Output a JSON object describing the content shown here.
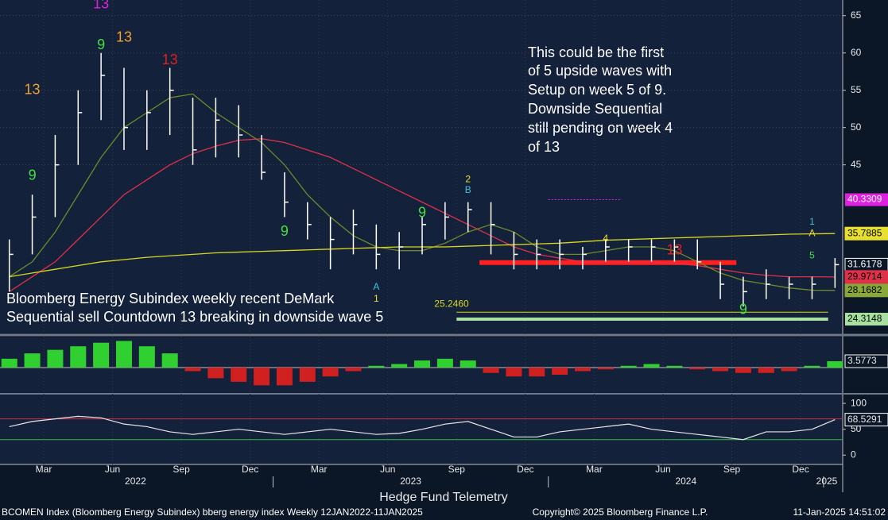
{
  "chart_data": {
    "type": "ohlc",
    "title": "Hedge Fund Telemetry",
    "footer_left": "BCOMEN Index (Bloomberg Energy Subindex) bberg energy index  Weekly 12JAN2022-11JAN2025",
    "footer_center": "Copyright© 2025 Bloomberg Finance L.P.",
    "footer_right": "11-Jan-2025 14:51:02",
    "annotations": [
      "This could be the first",
      "of 5 upside waves with",
      "Setup on week 5 of 9.",
      "Downside Sequential",
      "still pending on week 4",
      "of 13"
    ],
    "caption": [
      "Bloomberg Energy Subindex weekly recent DeMark",
      "Sequential sell Countdown 13 breaking in downside wave 5"
    ],
    "x": [
      "2022-01",
      "2022-02",
      "2022-03",
      "2022-04",
      "2022-05",
      "2022-06",
      "2022-07",
      "2022-08",
      "2022-09",
      "2022-10",
      "2022-11",
      "2022-12",
      "2023-01",
      "2023-02",
      "2023-03",
      "2023-04",
      "2023-05",
      "2023-06",
      "2023-07",
      "2023-08",
      "2023-09",
      "2023-10",
      "2023-11",
      "2023-12",
      "2024-01",
      "2024-02",
      "2024-03",
      "2024-04",
      "2024-05",
      "2024-06",
      "2024-07",
      "2024-08",
      "2024-09",
      "2024-10",
      "2024-11",
      "2024-12",
      "2025-01"
    ],
    "high": [
      35,
      41,
      49,
      55,
      60,
      58,
      55,
      58,
      54,
      54,
      53,
      49,
      44,
      40,
      38,
      39,
      37,
      36,
      38,
      40,
      40,
      40,
      36,
      35,
      35,
      34,
      35,
      35,
      35,
      35,
      35,
      32,
      30,
      31,
      30,
      30,
      32.5
    ],
    "low": [
      28,
      33,
      38,
      45,
      51,
      47,
      47,
      49,
      45,
      46,
      46,
      43,
      38,
      35,
      31,
      33,
      31,
      31,
      33,
      35,
      36,
      33,
      31,
      31,
      31,
      31,
      32,
      32,
      32,
      32,
      31,
      27,
      26,
      27,
      27,
      27,
      28.5
    ],
    "close": [
      33,
      38,
      45,
      52,
      57,
      50,
      52,
      55,
      47,
      51,
      49,
      44,
      40,
      37,
      35,
      37,
      33,
      34,
      37,
      38,
      39,
      37,
      33,
      33,
      33,
      33,
      34,
      34,
      34,
      34,
      32,
      29,
      28,
      29,
      29,
      29,
      31.6178
    ],
    "close_color": "#ffffff",
    "series": [
      {
        "name": "red-ma",
        "color": "#e0304a",
        "values": [
          28,
          30,
          32,
          35,
          38,
          41,
          43,
          45,
          46.5,
          47.5,
          48.3,
          48.5,
          48,
          47,
          46,
          44.5,
          43,
          41.5,
          40,
          38.5,
          37,
          35.5,
          34,
          33,
          32.5,
          32,
          32,
          32,
          32,
          31.8,
          31.5,
          31,
          30.5,
          30.2,
          30,
          30,
          29.9714
        ]
      },
      {
        "name": "green-ma",
        "color": "#6f8a2a",
        "values": [
          30,
          32,
          36,
          41,
          46,
          50,
          52,
          54,
          54.5,
          52,
          50,
          48,
          45,
          41,
          38,
          35.5,
          34,
          33.5,
          33.5,
          34.5,
          36,
          37,
          36,
          34,
          33,
          33,
          33.5,
          34,
          34,
          33.5,
          32,
          30.5,
          29.5,
          29,
          28.5,
          28.2,
          28.1682
        ]
      },
      {
        "name": "yellow-ma",
        "color": "#d8d820",
        "values": [
          30,
          30.5,
          31,
          31.5,
          32,
          32.3,
          32.6,
          32.8,
          33,
          33.2,
          33.3,
          33.4,
          33.5,
          33.6,
          33.7,
          33.8,
          33.9,
          34,
          34,
          34,
          34.1,
          34.2,
          34.3,
          34.4,
          34.5,
          34.7,
          34.9,
          35,
          35.1,
          35.2,
          35.3,
          35.4,
          35.5,
          35.6,
          35.7,
          35.75,
          35.7885
        ]
      }
    ],
    "label_colors": {
      "close": "#ffffff",
      "red-ma": "#e0304a",
      "green-ma": "#8aa83a",
      "yellow-ma": "#e8e030"
    },
    "levels": [
      {
        "value": 40.3309,
        "color": "#e020e0",
        "start": "2024-01",
        "end": "2024-04",
        "labelled": true
      },
      {
        "value": 24.3148,
        "color": "#a8e0a0",
        "start": "2023-09",
        "end": "2025-01",
        "labelled": true
      },
      {
        "value": 31.9,
        "color": "#ff2020",
        "start": "2023-10",
        "end": "2024-09",
        "labelled": false
      },
      {
        "value": 25.246,
        "color": "#d8d820",
        "start": "2023-09",
        "end": "2025-01",
        "labelled": false
      }
    ],
    "level_text": "25.2460",
    "demark": [
      {
        "text": "13",
        "date": "2022-05",
        "price": 66.5,
        "color": "#e020e0"
      },
      {
        "text": "13",
        "date": "2022-06",
        "price": 62,
        "color": "#f0a030"
      },
      {
        "text": "9",
        "date": "2022-05",
        "price": 61,
        "color": "#40e040"
      },
      {
        "text": "13",
        "date": "2022-08",
        "price": 59,
        "color": "#e02020"
      },
      {
        "text": "13",
        "date": "2022-02",
        "price": 55,
        "color": "#f0a030"
      },
      {
        "text": "9",
        "date": "2022-02",
        "price": 43.5,
        "color": "#40e040"
      },
      {
        "text": "9",
        "date": "2023-01",
        "price": 36,
        "color": "#40e040"
      },
      {
        "text": "9",
        "date": "2023-07",
        "price": 38.5,
        "color": "#40e040"
      },
      {
        "text": "13",
        "date": "2024-06",
        "price": 33.5,
        "color": "#e02020"
      },
      {
        "text": "9",
        "date": "2024-09",
        "price": 25.5,
        "color": "#40e040"
      },
      {
        "text": "A",
        "date": "2023-05",
        "price": 28.6,
        "color": "#40c0e0"
      },
      {
        "text": "1",
        "date": "2023-05",
        "price": 27,
        "color": "#e8e030"
      },
      {
        "text": "2",
        "date": "2023-09",
        "price": 43,
        "color": "#e8e030"
      },
      {
        "text": "B",
        "date": "2023-09",
        "price": 41.6,
        "color": "#40c0e0"
      },
      {
        "text": "4",
        "date": "2024-03",
        "price": 35.1,
        "color": "#e8e030"
      },
      {
        "text": "1",
        "date": "2024-12",
        "price": 37.3,
        "color": "#40c0e0"
      },
      {
        "text": "A",
        "date": "2024-12",
        "price": 35.8,
        "color": "#e8e030"
      },
      {
        "text": "5",
        "date": "2024-12",
        "price": 32.8,
        "color": "#40e040"
      }
    ],
    "ylim": [
      22.4,
      67.1
    ],
    "yticks": [
      45,
      50,
      55,
      60,
      65
    ],
    "grid": true,
    "hist": {
      "values": [
        5,
        8,
        10,
        12,
        14,
        15,
        12,
        8,
        -2,
        -6,
        -8,
        -10,
        -10,
        -8,
        -5,
        -2,
        1,
        2,
        4,
        5,
        4,
        -3,
        -5,
        -5,
        -4,
        -2,
        -1,
        1,
        2,
        1,
        -1,
        -2,
        -3,
        -3,
        -2,
        1,
        3.5773
      ],
      "up_color": "#30d030",
      "down_color": "#d02020",
      "ylim": [
        -14.3,
        17
      ]
    },
    "osc": {
      "values": [
        55,
        65,
        70,
        75,
        72,
        60,
        55,
        45,
        40,
        45,
        50,
        45,
        40,
        45,
        50,
        45,
        40,
        42,
        50,
        60,
        65,
        50,
        35,
        35,
        45,
        50,
        55,
        60,
        50,
        45,
        40,
        35,
        30,
        45,
        45,
        50,
        68.5291
      ],
      "color": "#e8e8e8",
      "ylim": [
        -18,
        117
      ],
      "yticks": [
        0,
        50,
        100
      ],
      "upper": 70,
      "lower": 30
    },
    "xticks": [
      {
        "value": "2022-03",
        "label": "Mar"
      },
      {
        "value": "2022-06",
        "label": "Jun"
      },
      {
        "value": "2022-09",
        "label": "Sep"
      },
      {
        "value": "2022-12",
        "label": "Dec"
      },
      {
        "value": "2023-03",
        "label": "Mar"
      },
      {
        "value": "2023-06",
        "label": "Jun"
      },
      {
        "value": "2023-09",
        "label": "Sep"
      },
      {
        "value": "2023-12",
        "label": "Dec"
      },
      {
        "value": "2024-03",
        "label": "Mar"
      },
      {
        "value": "2024-06",
        "label": "Jun"
      },
      {
        "value": "2024-09",
        "label": "Sep"
      },
      {
        "value": "2024-12",
        "label": "Dec"
      }
    ],
    "years": [
      "2022",
      "2023",
      "2024",
      "2025"
    ]
  }
}
